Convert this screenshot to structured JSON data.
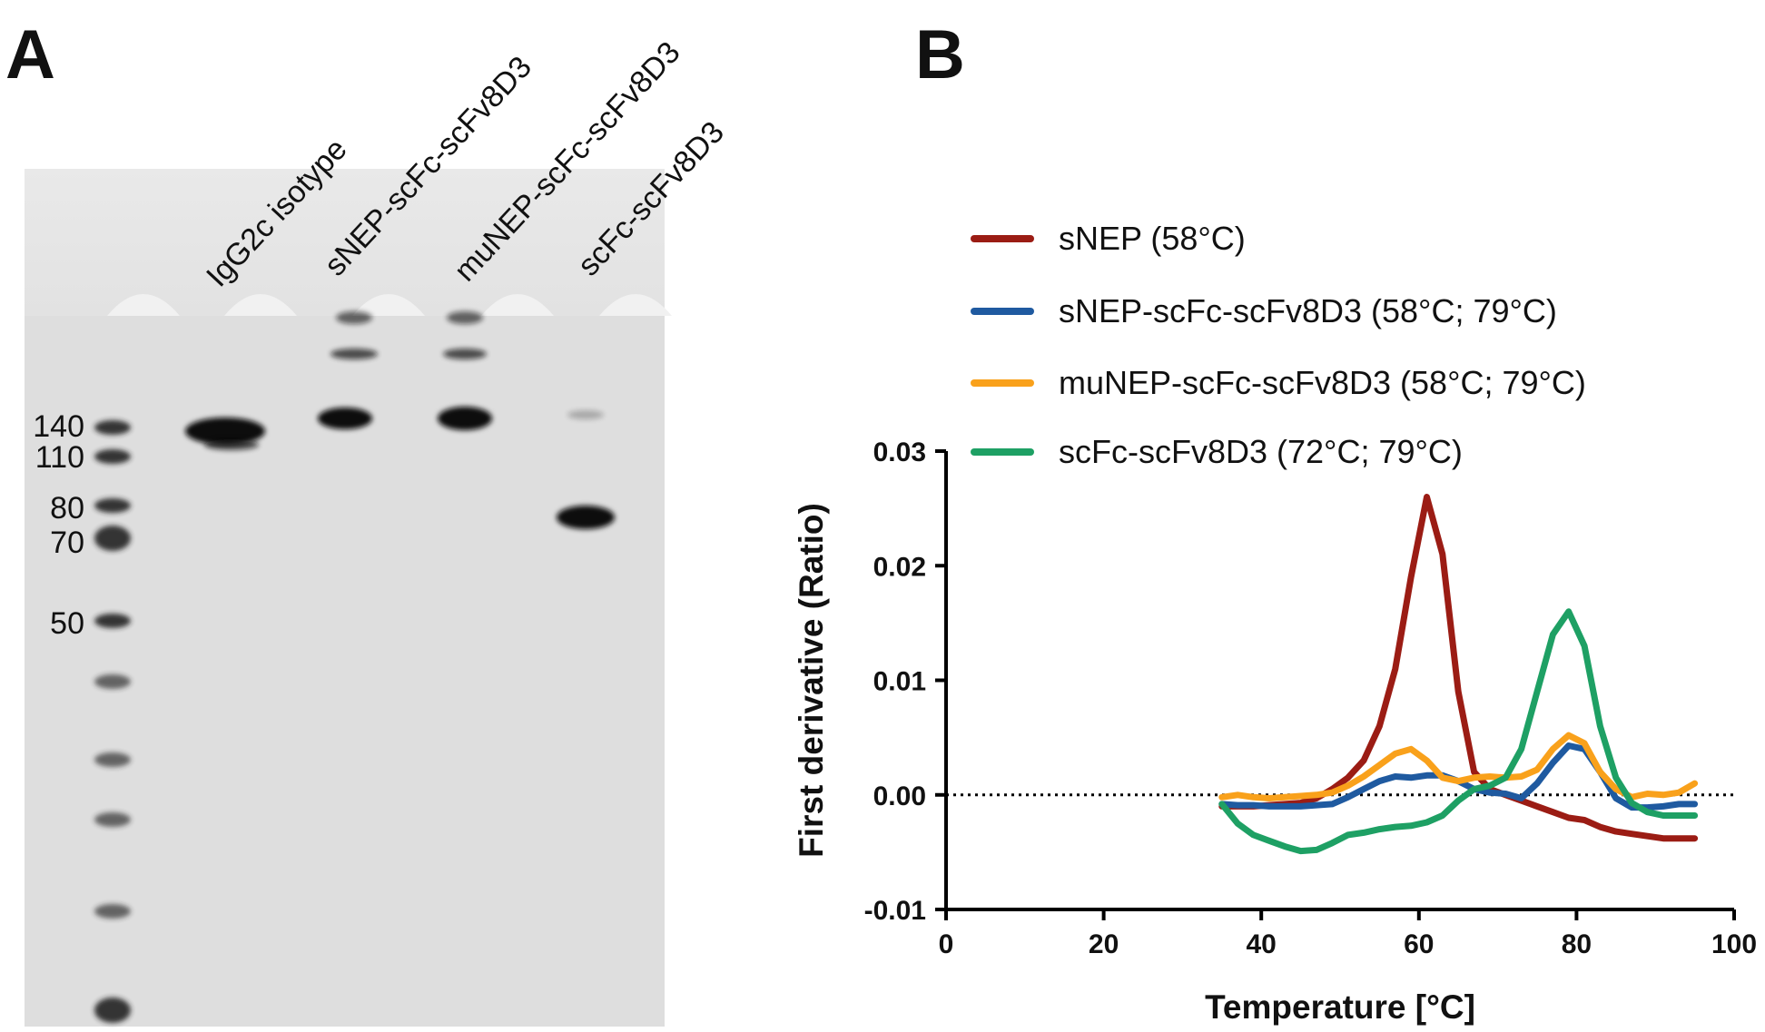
{
  "gel": {
    "panel_label": "A",
    "lanes": [
      "IgG2c isotype",
      "sNEP-scFc-scFv8D3",
      "muNEP-scFc-scFv8D3",
      "scFc-scFv8D3"
    ],
    "markers": [
      140,
      110,
      80,
      70,
      50
    ]
  },
  "chart_data": {
    "type": "line",
    "panel_label": "B",
    "x_label": "Temperature [°C]",
    "y_label": "First derivative (Ratio)",
    "x": [
      35,
      37,
      39,
      41,
      43,
      45,
      47,
      49,
      51,
      53,
      55,
      57,
      59,
      61,
      63,
      65,
      67,
      69,
      71,
      73,
      75,
      77,
      79,
      81,
      83,
      85,
      87,
      89,
      91,
      93,
      95
    ],
    "series": [
      {
        "name": "sNEP (58°C)",
        "color": "#9b1c14",
        "values": [
          -0.001,
          -0.001,
          -0.001,
          -0.0009,
          -0.0008,
          -0.0007,
          -0.0003,
          0.0005,
          0.0015,
          0.003,
          0.006,
          0.011,
          0.019,
          0.026,
          0.021,
          0.009,
          0.002,
          0.0005,
          0,
          -0.0005,
          -0.001,
          -0.0015,
          -0.002,
          -0.0022,
          -0.0028,
          -0.0032,
          -0.0034,
          -0.0036,
          -0.0038,
          -0.0038,
          -0.0038
        ]
      },
      {
        "name": "sNEP-scFc-scFv8D3 (58°C; 79°C)",
        "color": "#1f5aa0",
        "values": [
          -0.0008,
          -0.0009,
          -0.0009,
          -0.001,
          -0.001,
          -0.001,
          -0.0009,
          -0.0008,
          -0.0002,
          0.0005,
          0.0012,
          0.0016,
          0.0015,
          0.0017,
          0.0017,
          0.0012,
          0.0005,
          0.0002,
          0.0001,
          -0.0003,
          0.001,
          0.0028,
          0.0043,
          0.004,
          0.002,
          -0.0003,
          -0.0011,
          -0.0011,
          -0.001,
          -0.0008,
          -0.0008
        ]
      },
      {
        "name": "muNEP-scFc-scFv8D3 (58°C; 79°C)",
        "color": "#f9a11b",
        "values": [
          -0.0002,
          0,
          -0.0002,
          -0.0003,
          -0.0002,
          -0.0001,
          0,
          0.0002,
          0.0008,
          0.0016,
          0.0026,
          0.0036,
          0.004,
          0.003,
          0.0015,
          0.0012,
          0.0015,
          0.0016,
          0.0015,
          0.0016,
          0.0022,
          0.004,
          0.0052,
          0.0045,
          0.002,
          0.0005,
          -0.0002,
          0.0001,
          0,
          0.0002,
          0.001
        ]
      },
      {
        "name": "scFc-scFv8D3 (72°C; 79°C)",
        "color": "#1ea064",
        "values": [
          -0.0008,
          -0.0025,
          -0.0035,
          -0.004,
          -0.0045,
          -0.0049,
          -0.0048,
          -0.0042,
          -0.0035,
          -0.0033,
          -0.003,
          -0.0028,
          -0.0027,
          -0.0024,
          -0.0018,
          -0.0005,
          0.0005,
          0.0008,
          0.0015,
          0.004,
          0.009,
          0.014,
          0.016,
          0.013,
          0.006,
          0.0015,
          -0.0007,
          -0.0015,
          -0.0018,
          -0.0018,
          -0.0018
        ]
      }
    ],
    "xlim": [
      0,
      100
    ],
    "xticks": [
      0,
      20,
      40,
      60,
      80,
      100
    ],
    "ylim": [
      -0.01,
      0.03
    ],
    "yticks": [
      -0.01,
      {
        "value": 0,
        "label": "0.00"
      },
      0.01,
      0.02,
      0.03
    ],
    "zero_line": true,
    "legend": "top"
  }
}
